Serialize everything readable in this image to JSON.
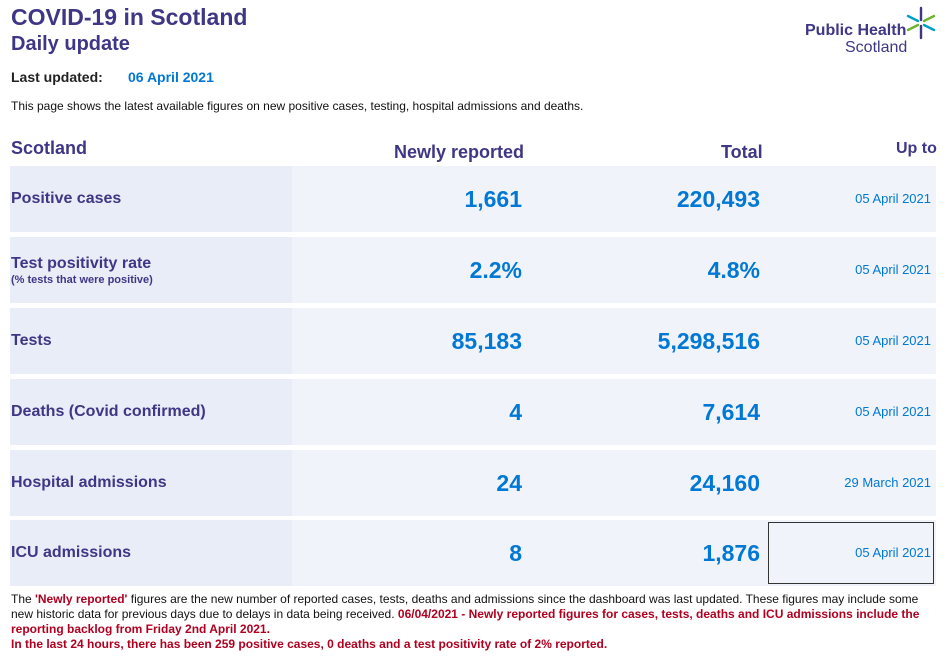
{
  "header": {
    "title": "COVID-19 in Scotland",
    "subtitle": "Daily update",
    "last_updated_label": "Last updated:",
    "last_updated_value": "06 April 2021",
    "intro": "This page shows the latest available figures on new positive cases, testing, hospital admissions and deaths."
  },
  "logo": {
    "line1": "Public Health",
    "line2": "Scotland",
    "icon": "star-icon"
  },
  "table": {
    "col_region": "Scotland",
    "col_new": "Newly reported",
    "col_total": "Total",
    "col_upto": "Up to",
    "rows": [
      {
        "label": "Positive cases",
        "sublabel": "",
        "new": "1,661",
        "total": "220,493",
        "upto": "05 April 2021"
      },
      {
        "label": "Test positivity rate",
        "sublabel": "(% tests that were positive)",
        "new": "2.2%",
        "total": "4.8%",
        "upto": "05 April 2021"
      },
      {
        "label": "Tests",
        "sublabel": "",
        "new": "85,183",
        "total": "5,298,516",
        "upto": "05 April 2021"
      },
      {
        "label": "Deaths (Covid confirmed)",
        "sublabel": "",
        "new": "4",
        "total": "7,614",
        "upto": "05 April 2021"
      },
      {
        "label": "Hospital admissions",
        "sublabel": "",
        "new": "24",
        "total": "24,160",
        "upto": "29 March 2021"
      },
      {
        "label": "ICU admissions",
        "sublabel": "",
        "new": "8",
        "total": "1,876",
        "upto": "05 April 2021"
      }
    ]
  },
  "footer": {
    "p1_prefix": "The ",
    "p1_highlight": "'Newly reported'",
    "p1_text": " figures are the new number of reported cases, tests, deaths and admissions since the dashboard was last updated. These figures may include some new historic data for previous days due to delays in data being received. ",
    "p1_notice": "06/04/2021 - Newly reported figures for cases, tests, deaths and ICU admissions include the reporting backlog from Friday 2nd April 2021.",
    "p2": "In the last 24 hours, there has been 259 positive cases, 0 deaths and a test positivity rate of 2% reported."
  },
  "colors": {
    "brand_purple": "#3f3685",
    "value_blue": "#0078d4",
    "notice_red": "#b00020"
  }
}
